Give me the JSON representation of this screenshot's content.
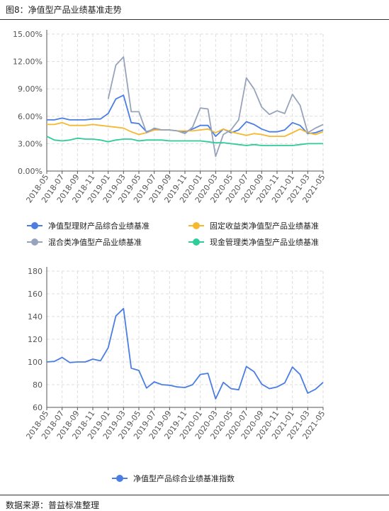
{
  "figure_title": "图8：净值型产品业绩基准走势",
  "source_note": "数据来源：普益标准整理",
  "colors": {
    "blue": "#4a7ee2",
    "orange": "#f5b82e",
    "gray": "#97a3bb",
    "teal": "#2ecc9a",
    "axis": "#555555",
    "grid": "#dddddd"
  },
  "chart_data": [
    {
      "type": "line",
      "title": "",
      "xlabel": "",
      "ylabel": "",
      "ylim": [
        0,
        15
      ],
      "y_ticks": [
        "0.00%",
        "3.00%",
        "6.00%",
        "9.00%",
        "12.00%",
        "15.00%"
      ],
      "grid": true,
      "legend_position": "bottom",
      "x_labels": [
        "2018-05",
        "2018-07",
        "2018-09",
        "2018-11",
        "2019-01",
        "2019-03",
        "2019-05",
        "2019-07",
        "2019-09",
        "2019-11",
        "2020-01",
        "2020-03",
        "2020-05",
        "2020-07",
        "2020-09",
        "2020-11",
        "2021-01",
        "2021-03",
        "2021-05"
      ],
      "x": [
        "2018-05",
        "2018-06",
        "2018-07",
        "2018-08",
        "2018-09",
        "2018-10",
        "2018-11",
        "2018-12",
        "2019-01",
        "2019-02",
        "2019-03",
        "2019-04",
        "2019-05",
        "2019-06",
        "2019-07",
        "2019-08",
        "2019-09",
        "2019-10",
        "2019-11",
        "2019-12",
        "2020-01",
        "2020-02",
        "2020-03",
        "2020-04",
        "2020-05",
        "2020-06",
        "2020-07",
        "2020-08",
        "2020-09",
        "2020-10",
        "2020-11",
        "2020-12",
        "2021-01",
        "2021-02",
        "2021-03",
        "2021-04",
        "2021-05"
      ],
      "series": [
        {
          "name": "净值型理财产品综合业绩基准",
          "color": "blue",
          "values": [
            5.6,
            5.6,
            5.8,
            5.6,
            5.6,
            5.6,
            5.7,
            5.7,
            6.3,
            7.9,
            8.3,
            5.3,
            5.2,
            4.3,
            4.6,
            4.5,
            4.5,
            4.4,
            4.3,
            4.6,
            5.0,
            5.0,
            3.8,
            4.6,
            4.2,
            4.5,
            5.4,
            5.1,
            4.6,
            4.3,
            4.3,
            4.5,
            5.3,
            5.0,
            4.1,
            4.2,
            4.5
          ]
        },
        {
          "name": "固定收益类净值型产品业绩基准",
          "color": "orange",
          "values": [
            5.1,
            5.1,
            5.3,
            5.0,
            5.0,
            5.0,
            5.1,
            5.0,
            4.9,
            4.8,
            4.7,
            4.3,
            4.0,
            4.2,
            4.5,
            4.5,
            4.5,
            4.4,
            4.4,
            4.4,
            4.5,
            4.6,
            4.2,
            4.6,
            4.3,
            4.1,
            3.9,
            4.1,
            4.0,
            3.8,
            3.8,
            3.8,
            4.2,
            4.6,
            4.2,
            4.0,
            4.3
          ]
        },
        {
          "name": "混合类净值型产品业绩基准",
          "color": "gray",
          "values": [
            null,
            null,
            null,
            null,
            null,
            null,
            null,
            null,
            7.9,
            11.6,
            12.5,
            6.5,
            6.5,
            4.2,
            4.7,
            4.5,
            4.5,
            4.4,
            4.1,
            4.8,
            6.9,
            6.8,
            1.6,
            4.0,
            4.5,
            5.6,
            10.2,
            9.0,
            7.0,
            6.2,
            6.6,
            6.3,
            8.4,
            7.2,
            4.2,
            4.7,
            5.1
          ]
        },
        {
          "name": "现金管理类净值型产品业绩基准",
          "color": "teal",
          "values": [
            3.8,
            3.4,
            3.3,
            3.4,
            3.6,
            3.5,
            3.5,
            3.4,
            3.2,
            3.4,
            3.5,
            3.5,
            3.3,
            3.4,
            3.4,
            3.4,
            3.3,
            3.3,
            3.3,
            3.3,
            3.3,
            3.2,
            3.1,
            3.1,
            3.0,
            2.9,
            2.8,
            2.9,
            2.8,
            2.8,
            2.8,
            2.8,
            2.8,
            2.9,
            3.0,
            3.0,
            3.0
          ]
        }
      ]
    },
    {
      "type": "line",
      "title": "",
      "xlabel": "",
      "ylabel": "",
      "ylim": [
        60,
        180
      ],
      "y_ticks": [
        "60",
        "80",
        "100",
        "120",
        "140",
        "160",
        "180"
      ],
      "grid": true,
      "legend_position": "bottom",
      "x_labels": [
        "2018-05",
        "2018-07",
        "2018-09",
        "2018-11",
        "2019-01",
        "2019-03",
        "2019-05",
        "2019-07",
        "2019-09",
        "2019-11",
        "2020-01",
        "2020-03",
        "2020-05",
        "2020-07",
        "2020-09",
        "2020-11",
        "2021-01",
        "2021-03",
        "2021-05"
      ],
      "x": [
        "2018-05",
        "2018-06",
        "2018-07",
        "2018-08",
        "2018-09",
        "2018-10",
        "2018-11",
        "2018-12",
        "2019-01",
        "2019-02",
        "2019-03",
        "2019-04",
        "2019-05",
        "2019-06",
        "2019-07",
        "2019-08",
        "2019-09",
        "2019-10",
        "2019-11",
        "2019-12",
        "2020-01",
        "2020-02",
        "2020-03",
        "2020-04",
        "2020-05",
        "2020-06",
        "2020-07",
        "2020-08",
        "2020-09",
        "2020-10",
        "2020-11",
        "2020-12",
        "2021-01",
        "2021-02",
        "2021-03",
        "2021-04",
        "2021-05"
      ],
      "series": [
        {
          "name": "净值型产品综合业绩基准指数",
          "color": "blue",
          "values": [
            100,
            100.5,
            104,
            99.5,
            100,
            100,
            102.5,
            101,
            112.5,
            140.5,
            147,
            94.5,
            92.5,
            77,
            82.5,
            80,
            79.5,
            78,
            77.5,
            80,
            89,
            90,
            67.5,
            82,
            76.5,
            75.5,
            96,
            91.5,
            80.5,
            76.5,
            78,
            81.5,
            95.5,
            89,
            72.5,
            76,
            82
          ]
        }
      ]
    }
  ]
}
